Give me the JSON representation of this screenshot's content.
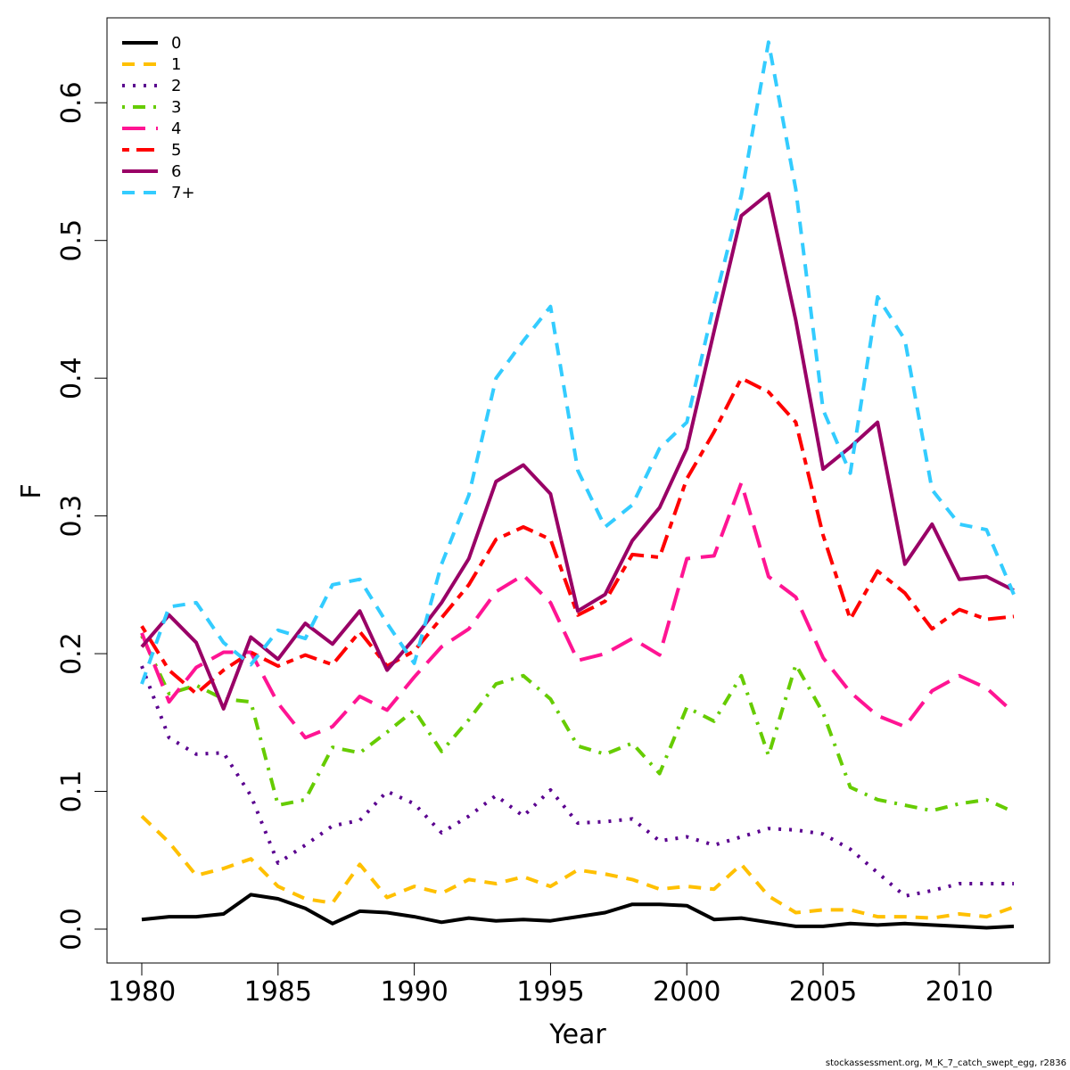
{
  "chart_data": {
    "type": "line",
    "title": "",
    "xlabel": "Year",
    "ylabel": "F",
    "xlim": [
      1980,
      2012
    ],
    "ylim": [
      0,
      0.65
    ],
    "x_ticks": [
      1980,
      1985,
      1990,
      1995,
      2000,
      2005,
      2010
    ],
    "y_ticks": [
      "0.0",
      "0.1",
      "0.2",
      "0.3",
      "0.4",
      "0.5",
      "0.6"
    ],
    "grid": false,
    "legend_position": "top-left",
    "x": [
      1980,
      1981,
      1982,
      1983,
      1984,
      1985,
      1986,
      1987,
      1988,
      1989,
      1990,
      1991,
      1992,
      1993,
      1994,
      1995,
      1996,
      1997,
      1998,
      1999,
      2000,
      2001,
      2002,
      2003,
      2004,
      2005,
      2006,
      2007,
      2008,
      2009,
      2010,
      2011,
      2012
    ],
    "series": [
      {
        "name": "0",
        "color": "#000000",
        "dash": "solid",
        "values": [
          0.007,
          0.009,
          0.009,
          0.011,
          0.025,
          0.022,
          0.015,
          0.004,
          0.013,
          0.012,
          0.009,
          0.005,
          0.008,
          0.006,
          0.007,
          0.006,
          0.009,
          0.012,
          0.018,
          0.018,
          0.017,
          0.007,
          0.008,
          0.005,
          0.002,
          0.002,
          0.004,
          0.003,
          0.004,
          0.003,
          0.002,
          0.001,
          0.002
        ]
      },
      {
        "name": "1",
        "color": "#FFC000",
        "dash": "dashed",
        "values": [
          0.082,
          0.063,
          0.039,
          0.044,
          0.051,
          0.031,
          0.022,
          0.019,
          0.047,
          0.023,
          0.031,
          0.026,
          0.036,
          0.033,
          0.038,
          0.031,
          0.043,
          0.04,
          0.036,
          0.029,
          0.031,
          0.029,
          0.047,
          0.024,
          0.012,
          0.014,
          0.014,
          0.009,
          0.009,
          0.008,
          0.011,
          0.009,
          0.016
        ]
      },
      {
        "name": "2",
        "color": "#5A008F",
        "dash": "dotted",
        "values": [
          0.191,
          0.139,
          0.127,
          0.128,
          0.097,
          0.048,
          0.061,
          0.075,
          0.079,
          0.1,
          0.091,
          0.07,
          0.082,
          0.097,
          0.082,
          0.101,
          0.077,
          0.078,
          0.08,
          0.064,
          0.067,
          0.061,
          0.067,
          0.073,
          0.072,
          0.069,
          0.058,
          0.041,
          0.024,
          0.028,
          0.033,
          0.033,
          0.033
        ]
      },
      {
        "name": "3",
        "color": "#66CC00",
        "dash": "dotdash",
        "values": [
          0.213,
          0.171,
          0.177,
          0.167,
          0.165,
          0.09,
          0.094,
          0.132,
          0.128,
          0.143,
          0.159,
          0.129,
          0.152,
          0.178,
          0.184,
          0.167,
          0.133,
          0.127,
          0.135,
          0.113,
          0.161,
          0.151,
          0.184,
          0.126,
          0.192,
          0.157,
          0.103,
          0.094,
          0.09,
          0.086,
          0.091,
          0.094,
          0.085
        ]
      },
      {
        "name": "4",
        "color": "#FF1493",
        "dash": "longdash",
        "values": [
          0.215,
          0.165,
          0.19,
          0.201,
          0.201,
          0.164,
          0.139,
          0.147,
          0.169,
          0.159,
          0.183,
          0.205,
          0.218,
          0.245,
          0.257,
          0.237,
          0.195,
          0.2,
          0.211,
          0.199,
          0.269,
          0.271,
          0.324,
          0.256,
          0.241,
          0.197,
          0.172,
          0.155,
          0.147,
          0.173,
          0.184,
          0.175,
          0.157
        ]
      },
      {
        "name": "5",
        "color": "#FF0000",
        "dash": "twodash",
        "values": [
          0.22,
          0.188,
          0.171,
          0.188,
          0.201,
          0.191,
          0.199,
          0.192,
          0.216,
          0.191,
          0.202,
          0.226,
          0.25,
          0.283,
          0.292,
          0.283,
          0.228,
          0.238,
          0.272,
          0.27,
          0.327,
          0.361,
          0.4,
          0.39,
          0.368,
          0.286,
          0.225,
          0.26,
          0.244,
          0.218,
          0.232,
          0.225,
          0.227
        ]
      },
      {
        "name": "6",
        "color": "#990066",
        "dash": "solid",
        "values": [
          0.205,
          0.228,
          0.208,
          0.16,
          0.212,
          0.196,
          0.222,
          0.207,
          0.231,
          0.188,
          0.211,
          0.237,
          0.269,
          0.325,
          0.337,
          0.316,
          0.231,
          0.243,
          0.282,
          0.306,
          0.349,
          0.434,
          0.518,
          0.534,
          0.442,
          0.334,
          0.35,
          0.368,
          0.265,
          0.294,
          0.254,
          0.256,
          0.246
        ]
      },
      {
        "name": "7+",
        "color": "#33CCFF",
        "dash": "dashed",
        "values": [
          0.178,
          0.234,
          0.237,
          0.208,
          0.192,
          0.217,
          0.211,
          0.25,
          0.254,
          0.222,
          0.193,
          0.265,
          0.315,
          0.4,
          0.427,
          0.452,
          0.333,
          0.292,
          0.308,
          0.349,
          0.368,
          0.454,
          0.533,
          0.644,
          0.537,
          0.377,
          0.331,
          0.459,
          0.428,
          0.319,
          0.294,
          0.29,
          0.243
        ]
      }
    ]
  },
  "footer_note": "stockassessment.org, M_K_7_catch_swept_egg, r2836"
}
